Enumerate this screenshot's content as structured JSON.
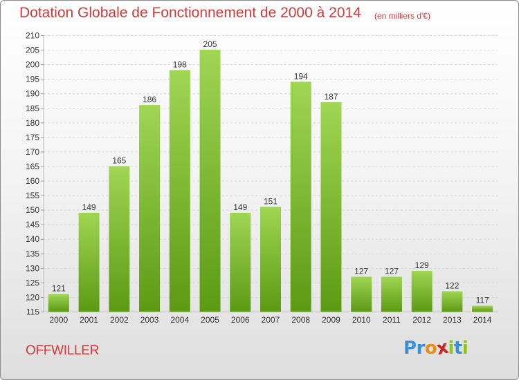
{
  "title": "Dotation Globale de Fonctionnement de 2000 à 2014",
  "unit": "(en milliers d'€)",
  "commune": "OFFWILLER",
  "logo": "Proxiti",
  "colors": {
    "title": "#cc3b3b",
    "bar_top": "#9fd653",
    "bar_bottom": "#5c9a14",
    "logo_letters": [
      "#3a8fd6",
      "#3a8fd6",
      "#ef8b12",
      "#cc2222",
      "#8fc41f",
      "#3a8fd6",
      "#8fc41f"
    ]
  },
  "chart_data": {
    "type": "bar",
    "categories": [
      "2000",
      "2001",
      "2002",
      "2003",
      "2004",
      "2005",
      "2006",
      "2007",
      "2008",
      "2009",
      "2010",
      "2011",
      "2012",
      "2013",
      "2014"
    ],
    "values": [
      121,
      149,
      165,
      186,
      198,
      205,
      149,
      151,
      194,
      187,
      127,
      127,
      129,
      122,
      117
    ],
    "title": "Dotation Globale de Fonctionnement de 2000 à 2014",
    "ylim": [
      115,
      210
    ],
    "yticks": [
      115,
      120,
      125,
      130,
      135,
      140,
      145,
      150,
      155,
      160,
      165,
      170,
      175,
      180,
      185,
      190,
      195,
      200,
      205,
      210
    ],
    "grid": true,
    "data_labels": true
  }
}
